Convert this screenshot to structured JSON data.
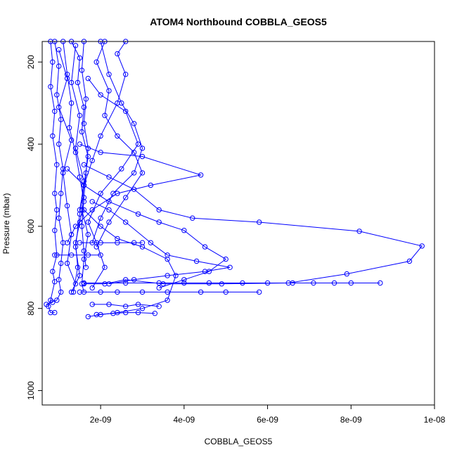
{
  "chart_data": {
    "type": "line",
    "title": "ATOM4 Northbound COBBLA_GEOS5",
    "xlabel": "COBBLA_GEOS5",
    "ylabel": "Pressure (mbar)",
    "xlim": [
      6e-10,
      1e-08
    ],
    "ylim": [
      1035,
      150
    ],
    "y_axis_inverted": true,
    "grid": false,
    "legend": "none",
    "marker": "open-circle",
    "color": "#0000ff",
    "x_ticks": [
      2e-09,
      4e-09,
      6e-09,
      8e-09,
      1e-08
    ],
    "x_tick_labels": [
      "2e-09",
      "4e-09",
      "6e-09",
      "8e-09",
      "1e-08"
    ],
    "y_ticks": [
      200,
      400,
      600,
      800,
      1000
    ],
    "y_tick_labels": [
      "200",
      "400",
      "600",
      "800",
      "1000"
    ],
    "series": [
      {
        "points": [
          [
            8e-10,
            150
          ],
          [
            8.5e-10,
            200
          ],
          [
            8e-10,
            260
          ],
          [
            9e-10,
            320
          ],
          [
            8.5e-10,
            380
          ],
          [
            9.5e-10,
            450
          ],
          [
            9e-10,
            520
          ],
          [
            9.5e-10,
            560
          ],
          [
            9e-10,
            610
          ],
          [
            9.5e-10,
            670
          ],
          [
            8.5e-10,
            710
          ],
          [
            9e-10,
            735
          ],
          [
            8e-10,
            780
          ],
          [
            7.5e-10,
            795
          ],
          [
            8e-10,
            810
          ],
          [
            9e-10,
            810
          ]
        ]
      },
      {
        "points": [
          [
            9e-10,
            150
          ],
          [
            1e-09,
            210
          ],
          [
            9.5e-10,
            280
          ],
          [
            1.05e-09,
            340
          ],
          [
            1e-09,
            400
          ],
          [
            1.1e-09,
            460
          ],
          [
            1.05e-09,
            520
          ],
          [
            1e-09,
            580
          ],
          [
            1.1e-09,
            640
          ],
          [
            1.05e-09,
            690
          ],
          [
            1e-09,
            730
          ],
          [
            1.05e-09,
            760
          ],
          [
            9.5e-10,
            780
          ],
          [
            7e-10,
            790
          ],
          [
            8.5e-10,
            785
          ]
        ]
      },
      {
        "points": [
          [
            1.1e-09,
            150
          ],
          [
            1.2e-09,
            230
          ],
          [
            1.3e-09,
            300
          ],
          [
            1.25e-09,
            360
          ],
          [
            1.4e-09,
            420
          ],
          [
            1.5e-09,
            480
          ],
          [
            1.6e-09,
            540
          ],
          [
            1.5e-09,
            590
          ],
          [
            1.4e-09,
            640
          ],
          [
            1.45e-09,
            700
          ],
          [
            1.35e-09,
            760
          ]
        ]
      },
      {
        "points": [
          [
            1.3e-09,
            150
          ],
          [
            1.5e-09,
            190
          ],
          [
            1.45e-09,
            250
          ],
          [
            1.6e-09,
            310
          ],
          [
            1.55e-09,
            370
          ],
          [
            1.7e-09,
            430
          ],
          [
            1.6e-09,
            500
          ],
          [
            1.55e-09,
            560
          ],
          [
            1.7e-09,
            620
          ],
          [
            1.6e-09,
            680
          ],
          [
            1.55e-09,
            740
          ],
          [
            1.6e-09,
            760
          ]
        ]
      },
      {
        "points": [
          [
            1.6e-09,
            150
          ],
          [
            1.55e-09,
            220
          ],
          [
            1.65e-09,
            290
          ],
          [
            1.6e-09,
            350
          ],
          [
            1.7e-09,
            410
          ],
          [
            1.65e-09,
            470
          ],
          [
            1.6e-09,
            530
          ],
          [
            1.55e-09,
            600
          ],
          [
            1.6e-09,
            660
          ],
          [
            1.65e-09,
            700
          ]
        ]
      },
      {
        "points": [
          [
            2e-09,
            150
          ],
          [
            2.2e-09,
            230
          ],
          [
            2.5e-09,
            300
          ],
          [
            2.8e-09,
            350
          ],
          [
            3e-09,
            410
          ],
          [
            2.8e-09,
            470
          ],
          [
            2.3e-09,
            520
          ],
          [
            2e-09,
            580
          ],
          [
            1.8e-09,
            640
          ]
        ]
      },
      {
        "points": [
          [
            2.6e-09,
            150
          ],
          [
            2.4e-09,
            180
          ],
          [
            2.6e-09,
            230
          ],
          [
            2.4e-09,
            300
          ],
          [
            2e-09,
            380
          ],
          [
            1.8e-09,
            440
          ],
          [
            1.6e-09,
            500
          ],
          [
            1.5e-09,
            560
          ]
        ]
      },
      {
        "points": [
          [
            2.1e-09,
            150
          ],
          [
            1.9e-09,
            200
          ],
          [
            2.2e-09,
            270
          ],
          [
            2.1e-09,
            330
          ],
          [
            2.4e-09,
            380
          ],
          [
            2.8e-09,
            420
          ],
          [
            3e-09,
            470
          ],
          [
            2.6e-09,
            530
          ],
          [
            2.2e-09,
            590
          ],
          [
            1.9e-09,
            650
          ]
        ]
      },
      {
        "points": [
          [
            1.5e-09,
            400
          ],
          [
            2e-09,
            420
          ],
          [
            3e-09,
            430
          ],
          [
            4.4e-09,
            475
          ],
          [
            3.2e-09,
            500
          ],
          [
            2.4e-09,
            520
          ],
          [
            1.8e-09,
            560
          ],
          [
            1.4e-09,
            600
          ],
          [
            1.2e-09,
            640
          ]
        ]
      },
      {
        "points": [
          [
            1.6e-09,
            450
          ],
          [
            2.2e-09,
            480
          ],
          [
            2.8e-09,
            510
          ],
          [
            3.4e-09,
            560
          ],
          [
            4.2e-09,
            580
          ],
          [
            5.8e-09,
            590
          ],
          [
            8.2e-09,
            612
          ],
          [
            9.7e-09,
            648
          ],
          [
            9.4e-09,
            685
          ],
          [
            7.9e-09,
            716
          ],
          [
            6.5e-09,
            738
          ],
          [
            4.9e-09,
            740
          ],
          [
            3.5e-09,
            740
          ],
          [
            2.6e-09,
            730
          ],
          [
            2.1e-09,
            740
          ],
          [
            1.6e-09,
            740
          ]
        ]
      },
      {
        "points": [
          [
            1.2e-09,
            460
          ],
          [
            1.6e-09,
            500
          ],
          [
            2.2e-09,
            540
          ],
          [
            2.9e-09,
            570
          ],
          [
            3.4e-09,
            590
          ],
          [
            4e-09,
            610
          ],
          [
            4.5e-09,
            650
          ],
          [
            5e-09,
            680
          ],
          [
            4.6e-09,
            710
          ],
          [
            4e-09,
            730
          ],
          [
            3.4e-09,
            750
          ]
        ]
      },
      {
        "points": [
          [
            1.8e-09,
            540
          ],
          [
            2.2e-09,
            560
          ],
          [
            2.6e-09,
            590
          ],
          [
            3.2e-09,
            640
          ],
          [
            3.6e-09,
            670
          ],
          [
            4.3e-09,
            685
          ],
          [
            5.1e-09,
            700
          ],
          [
            4.5e-09,
            710
          ],
          [
            3.6e-09,
            720
          ],
          [
            2.8e-09,
            730
          ],
          [
            2.2e-09,
            740
          ]
        ]
      },
      {
        "points": [
          [
            1.6e-09,
            560
          ],
          [
            2e-09,
            600
          ],
          [
            2.4e-09,
            630
          ],
          [
            3e-09,
            650
          ],
          [
            3.6e-09,
            680
          ],
          [
            3.8e-09,
            720
          ],
          [
            3.6e-09,
            780
          ],
          [
            3e-09,
            800
          ],
          [
            2.4e-09,
            810
          ],
          [
            2e-09,
            815
          ],
          [
            1.7e-09,
            820
          ]
        ]
      },
      {
        "points": [
          [
            1.5e-09,
            640
          ],
          [
            2e-09,
            640
          ],
          [
            2.4e-09,
            640
          ],
          [
            2.8e-09,
            640
          ],
          [
            3e-09,
            640
          ]
        ]
      },
      {
        "points": [
          [
            9e-10,
            670
          ],
          [
            1.3e-09,
            670
          ],
          [
            1.7e-09,
            670
          ],
          [
            2e-09,
            670
          ]
        ]
      },
      {
        "points": [
          [
            1.6e-09,
            738
          ],
          [
            2.6e-09,
            738
          ],
          [
            3.4e-09,
            738
          ],
          [
            4e-09,
            738
          ],
          [
            4.6e-09,
            738
          ],
          [
            5.4e-09,
            738
          ],
          [
            6e-09,
            738
          ],
          [
            6.6e-09,
            738
          ],
          [
            7.1e-09,
            738
          ],
          [
            7.6e-09,
            738
          ],
          [
            8e-09,
            738
          ],
          [
            8.7e-09,
            738
          ]
        ]
      },
      {
        "points": [
          [
            1.5e-09,
            760
          ],
          [
            2e-09,
            760
          ],
          [
            2.4e-09,
            760
          ],
          [
            3e-09,
            760
          ],
          [
            3.6e-09,
            760
          ],
          [
            4.4e-09,
            760
          ],
          [
            5e-09,
            760
          ],
          [
            5.8e-09,
            760
          ]
        ]
      },
      {
        "points": [
          [
            1.8e-09,
            790
          ],
          [
            2.2e-09,
            790
          ],
          [
            2.6e-09,
            795
          ],
          [
            2.9e-09,
            790
          ],
          [
            3.4e-09,
            795
          ]
        ]
      },
      {
        "points": [
          [
            1.9e-09,
            815
          ],
          [
            2.3e-09,
            812
          ],
          [
            2.6e-09,
            810
          ],
          [
            2.9e-09,
            810
          ],
          [
            3.3e-09,
            812
          ]
        ]
      },
      {
        "points": [
          [
            1e-09,
            170
          ],
          [
            1.2e-09,
            240
          ],
          [
            1e-09,
            310
          ],
          [
            1.3e-09,
            390
          ],
          [
            1.1e-09,
            470
          ],
          [
            1.2e-09,
            550
          ],
          [
            1.3e-09,
            620
          ],
          [
            1.2e-09,
            690
          ],
          [
            1.4e-09,
            740
          ]
        ]
      },
      {
        "points": [
          [
            1.4e-09,
            160
          ],
          [
            1.3e-09,
            250
          ],
          [
            1.5e-09,
            330
          ],
          [
            1.4e-09,
            410
          ],
          [
            1.6e-09,
            490
          ],
          [
            1.5e-09,
            570
          ],
          [
            1.4e-09,
            650
          ],
          [
            1.5e-09,
            720
          ],
          [
            1.3e-09,
            760
          ]
        ]
      },
      {
        "points": [
          [
            1.7e-09,
            240
          ],
          [
            2e-09,
            280
          ],
          [
            2.6e-09,
            320
          ],
          [
            2.9e-09,
            400
          ],
          [
            2.5e-09,
            460
          ],
          [
            2e-09,
            520
          ],
          [
            1.7e-09,
            590
          ],
          [
            1.9e-09,
            640
          ],
          [
            2.1e-09,
            700
          ],
          [
            1.8e-09,
            750
          ]
        ]
      }
    ]
  }
}
